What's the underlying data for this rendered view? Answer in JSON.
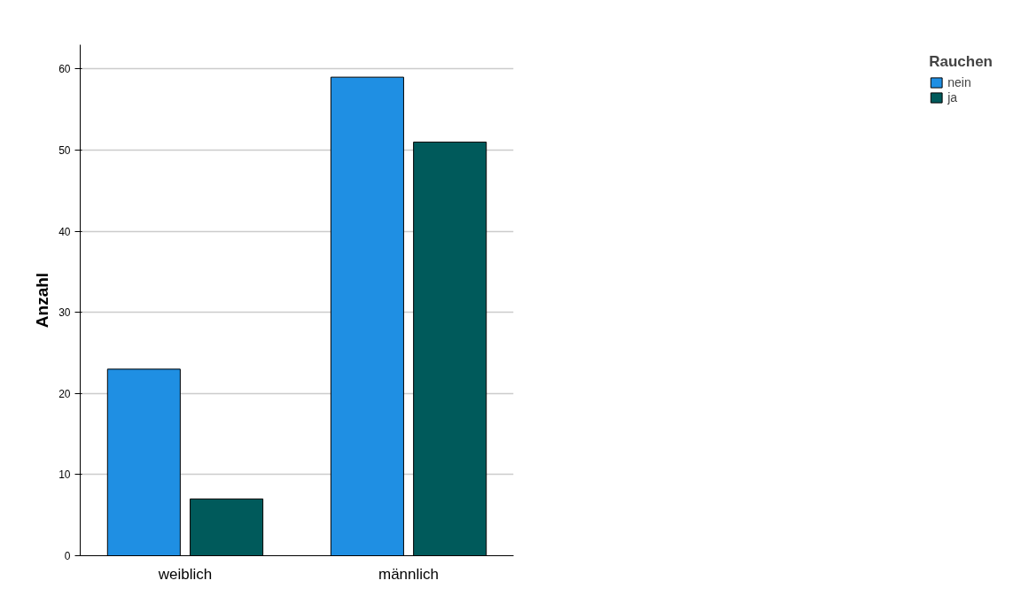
{
  "chart_data": {
    "type": "bar",
    "ylabel": "Anzahl",
    "legend_title": "Rauchen",
    "categories": [
      "weiblich",
      "männlich"
    ],
    "series": [
      {
        "name": "nein",
        "color": "#1f8fe3",
        "values": [
          23,
          59
        ]
      },
      {
        "name": "ja",
        "color": "#005a5b",
        "values": [
          7,
          51
        ]
      }
    ],
    "ylim": [
      0,
      63
    ],
    "yticks": [
      0,
      10,
      20,
      30,
      40,
      50,
      60
    ],
    "grid": "y",
    "legend": "top right"
  }
}
